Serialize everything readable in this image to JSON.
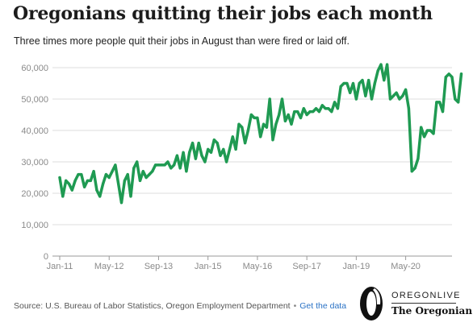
{
  "header": {
    "title": "Oregonians quitting their jobs each month",
    "subtitle": "Three times more people quit their jobs in August than were fired or laid off."
  },
  "footer": {
    "source": "Source: U.S. Bureau of Labor Statistics, Oregon Employment Department",
    "separator": "•",
    "link_label": "Get the data"
  },
  "brand": {
    "top": "OREGONLIVE",
    "bottom": "The Oregonian",
    "logo_letter": "O"
  },
  "colors": {
    "line": "#1f9a52",
    "grid": "#dcdcdc",
    "axis": "#9a9a9a",
    "tick_text": "#8a8a8a"
  },
  "chart_data": {
    "type": "line",
    "title": "Oregonians quitting their jobs each month",
    "subtitle": "Three times more people quit their jobs in August than were fired or laid off.",
    "xlabel": "",
    "ylabel": "",
    "x_start": "2011-01",
    "x_end": "2021-08",
    "ylim": [
      0,
      60000
    ],
    "y_ticks": [
      {
        "value": 0,
        "label": "0"
      },
      {
        "value": 10000,
        "label": "10,000"
      },
      {
        "value": 20000,
        "label": "20,000"
      },
      {
        "value": 30000,
        "label": "30,000"
      },
      {
        "value": 40000,
        "label": "40,000"
      },
      {
        "value": 50000,
        "label": "50,000"
      },
      {
        "value": 60000,
        "label": "60,000"
      }
    ],
    "x_ticks": [
      {
        "date": "2011-01",
        "label": "Jan-11"
      },
      {
        "date": "2012-05",
        "label": "May-12"
      },
      {
        "date": "2013-09",
        "label": "Sep-13"
      },
      {
        "date": "2015-01",
        "label": "Jan-15"
      },
      {
        "date": "2016-05",
        "label": "May-16"
      },
      {
        "date": "2017-09",
        "label": "Sep-17"
      },
      {
        "date": "2019-01",
        "label": "Jan-19"
      },
      {
        "date": "2020-05",
        "label": "May-20"
      }
    ],
    "grid": true,
    "legend": "none",
    "series": [
      {
        "values": [
          25000,
          19000,
          24000,
          23000,
          21000,
          24000,
          26000,
          26000,
          22000,
          24000,
          24000,
          27000,
          21000,
          19000,
          23000,
          26000,
          25000,
          27000,
          29000,
          23000,
          17000,
          24000,
          26000,
          19000,
          28000,
          30000,
          24000,
          27000,
          25000,
          26000,
          27000,
          29000,
          29000,
          29000,
          29000,
          30000,
          28000,
          29000,
          32000,
          28000,
          33000,
          27000,
          33000,
          36000,
          31000,
          36000,
          32000,
          30000,
          34000,
          33000,
          37000,
          36000,
          32000,
          34000,
          30000,
          34000,
          38000,
          34000,
          42000,
          41000,
          36000,
          40000,
          45000,
          44000,
          44000,
          38000,
          42000,
          41000,
          50000,
          37000,
          42000,
          45000,
          50000,
          43000,
          45000,
          42000,
          46000,
          46000,
          44000,
          47000,
          45000,
          46000,
          46000,
          47000,
          46000,
          48000,
          47000,
          47000,
          46000,
          49000,
          47000,
          54000,
          55000,
          55000,
          52000,
          55000,
          50000,
          55000,
          56000,
          51000,
          56000,
          50000,
          55000,
          59000,
          61000,
          56000,
          61000,
          50000,
          51000,
          52000,
          50000,
          51000,
          53000,
          47000,
          27000,
          28000,
          31000,
          41000,
          38000,
          40000,
          40000,
          39000,
          49000,
          49000,
          46000,
          57000,
          58000,
          57000,
          50000,
          49000,
          58000
        ]
      }
    ]
  }
}
